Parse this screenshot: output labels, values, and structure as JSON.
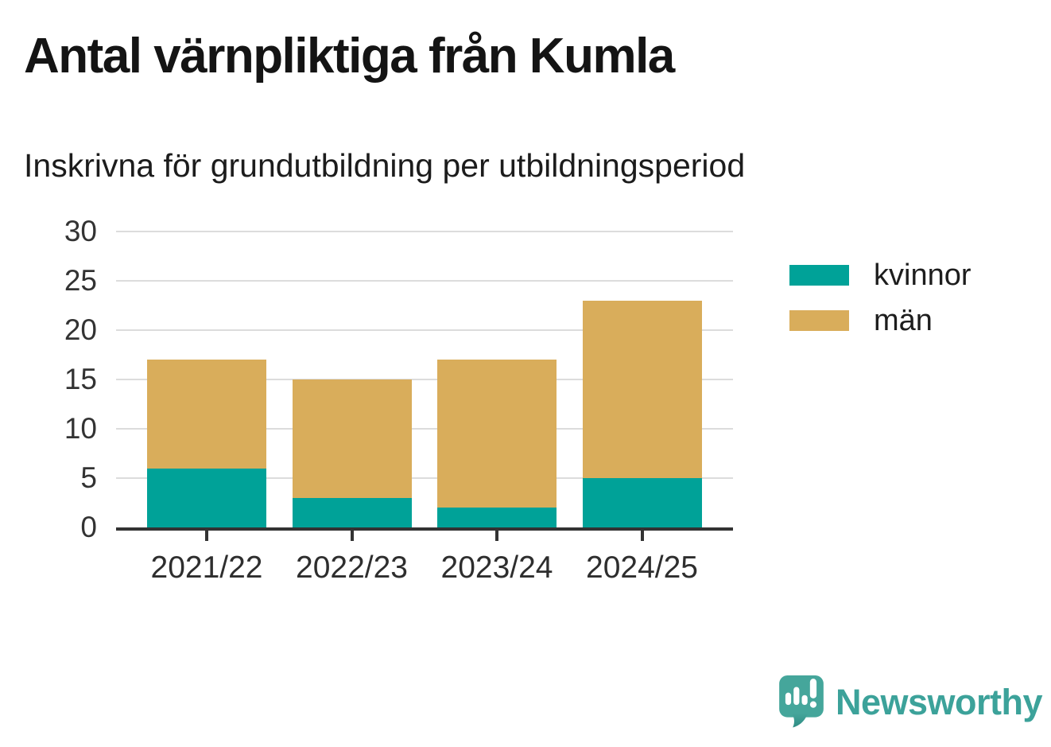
{
  "chart_data": {
    "type": "bar",
    "stacked": true,
    "title": "Antal värnpliktiga från Kumla",
    "subtitle": "Inskrivna för grundutbildning per utbildningsperiod",
    "categories": [
      "2021/22",
      "2022/23",
      "2023/24",
      "2024/25"
    ],
    "series": [
      {
        "key": "kvinnor",
        "name": "kvinnor",
        "color": "#00A298",
        "values": [
          6,
          3,
          2,
          5
        ]
      },
      {
        "key": "man",
        "name": "män",
        "color": "#D9AD5B",
        "values": [
          11,
          12,
          15,
          18
        ]
      }
    ],
    "stack_totals": [
      17,
      15,
      17,
      23
    ],
    "xlabel": "",
    "ylabel": "",
    "ylim": [
      0,
      30
    ],
    "yticks": [
      0,
      5,
      10,
      15,
      20,
      25,
      30
    ],
    "grid": "horizontal",
    "legend_position": "right"
  },
  "branding": {
    "name": "Newsworthy",
    "color": "#3ca29a"
  }
}
